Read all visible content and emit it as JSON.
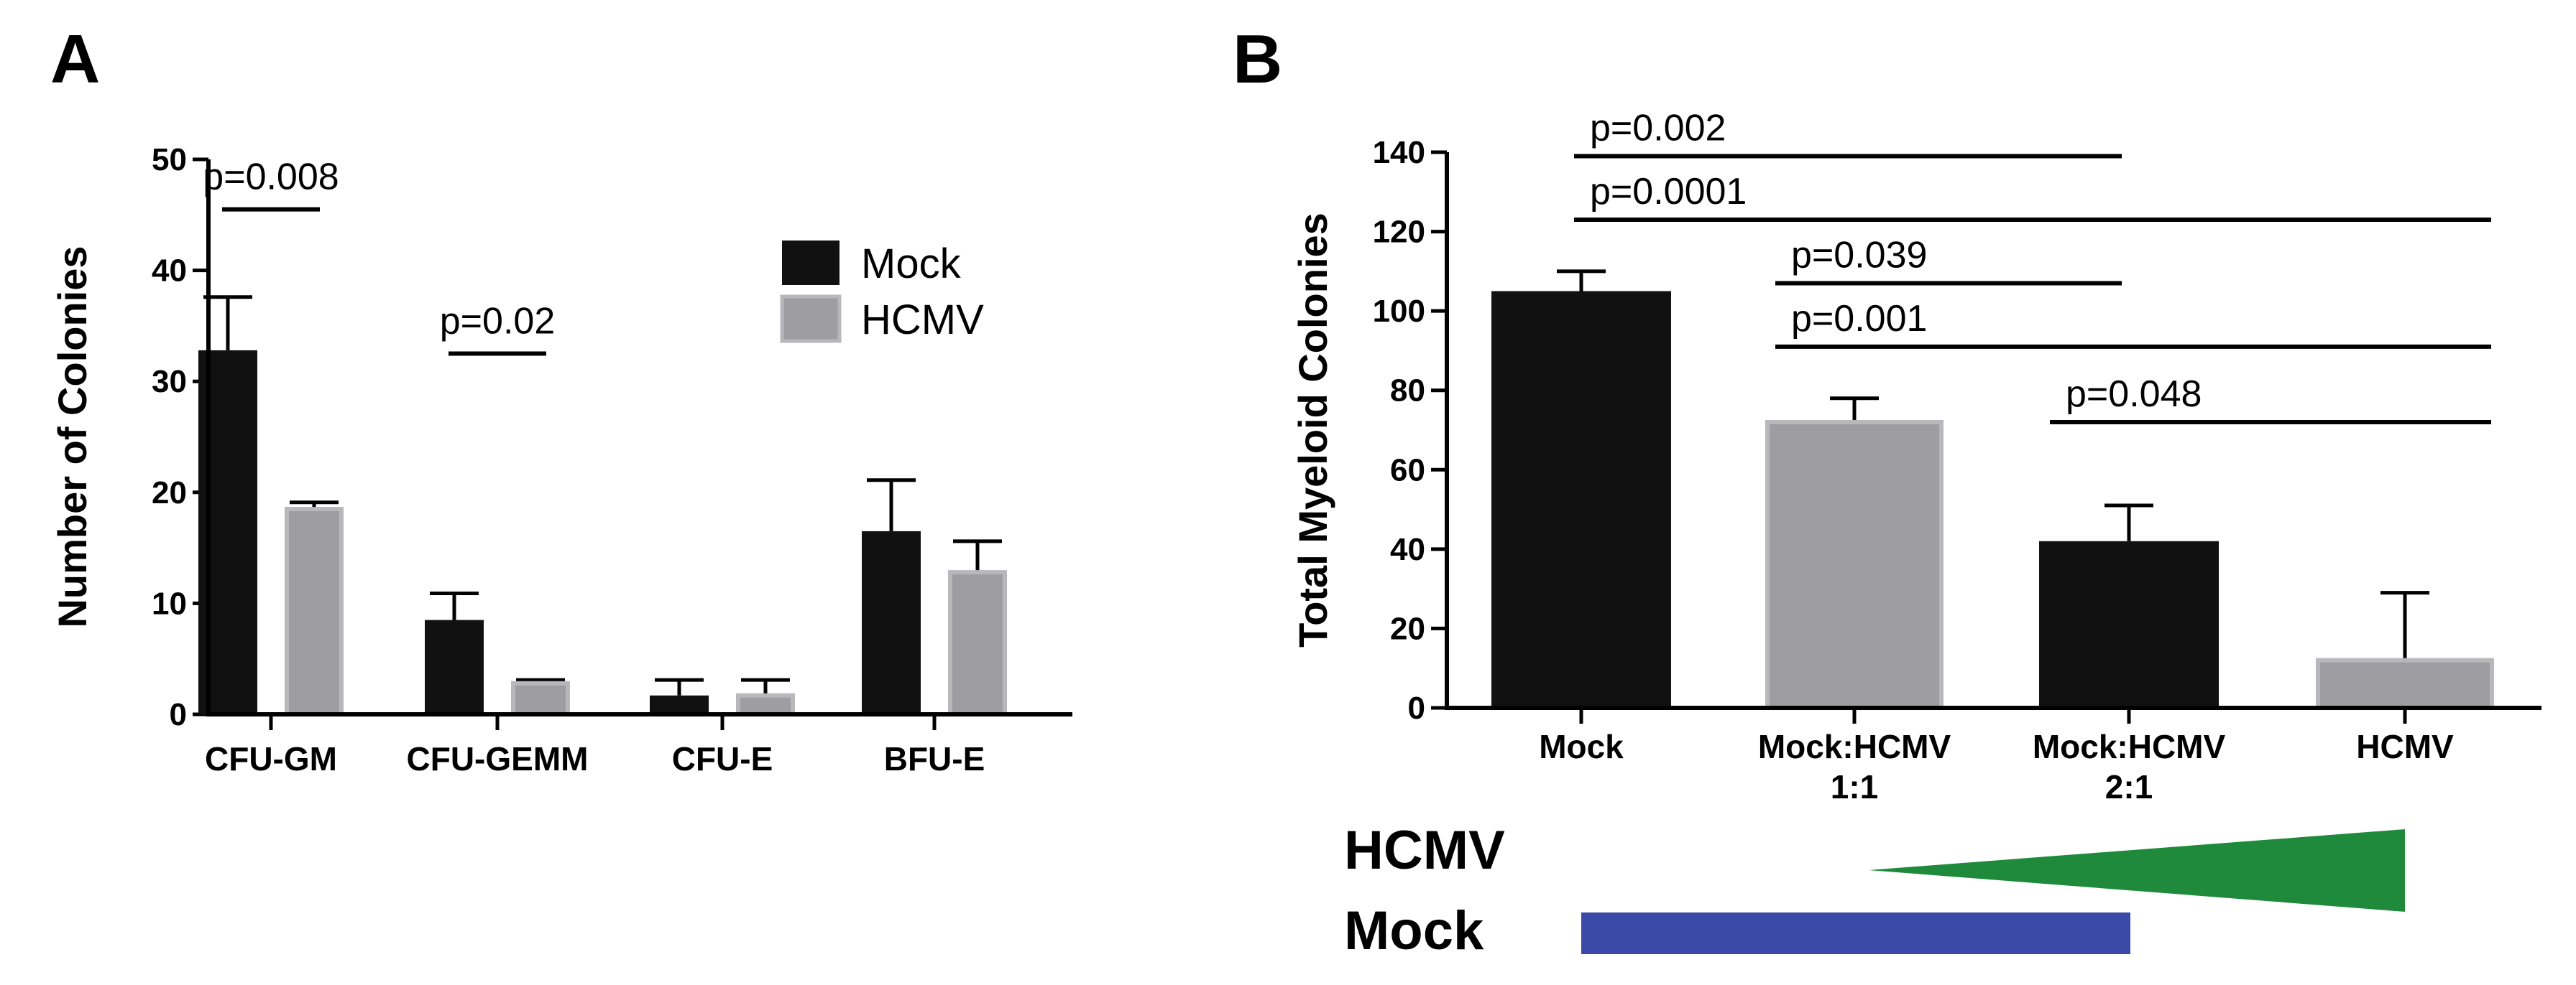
{
  "colors": {
    "mock": "#111111",
    "hcmv": "#9d9da2",
    "hcmv_edge": "#b8b8bc",
    "hcmv_wedge": "#1f8a3b",
    "mock_bar": "#3b4aa6"
  },
  "chart_data": [
    {
      "panel": "A",
      "type": "bar",
      "ylabel": "Number of Colonies",
      "ylim": [
        0,
        50
      ],
      "yticks": [
        0,
        10,
        20,
        30,
        40,
        50
      ],
      "categories": [
        "CFU-GM",
        "CFU-GEMM",
        "CFU-E",
        "BFU-E"
      ],
      "series": [
        {
          "name": "Mock",
          "color": "mock",
          "values": [
            32.8,
            8.5,
            1.7,
            16.5
          ],
          "errors": [
            4.8,
            2.4,
            1.4,
            4.6
          ]
        },
        {
          "name": "HCMV",
          "color": "hcmv",
          "values": [
            18.5,
            2.8,
            1.7,
            12.8
          ],
          "errors": [
            0.6,
            0.3,
            1.4,
            2.8
          ]
        }
      ],
      "legend": {
        "position": "top-right",
        "entries": [
          "Mock",
          "HCMV"
        ]
      },
      "annotations": [
        {
          "text": "p=0.008",
          "category": 0,
          "y": 45.5
        },
        {
          "text": "p=0.02",
          "category": 1,
          "y": 32.5
        }
      ]
    },
    {
      "panel": "B",
      "type": "bar",
      "ylabel": "Total Myeloid Colonies",
      "ylim": [
        0,
        140
      ],
      "yticks": [
        0,
        20,
        40,
        60,
        80,
        100,
        120,
        140
      ],
      "categories": [
        [
          "Mock"
        ],
        [
          "Mock:HCMV",
          "1:1"
        ],
        [
          "Mock:HCMV",
          "2:1"
        ],
        [
          "HCMV"
        ]
      ],
      "values": [
        105,
        72,
        42,
        12
      ],
      "errors": [
        5,
        6,
        9,
        17
      ],
      "bar_colors": [
        "mock",
        "hcmv",
        "mock",
        "hcmv"
      ],
      "comparisons": [
        {
          "text": "p=0.002",
          "from": 0,
          "to": 2,
          "y": 139
        },
        {
          "text": "p=0.0001",
          "from": 0,
          "to": 3,
          "y": 123
        },
        {
          "text": "p=0.039",
          "from": 1,
          "to": 2,
          "y": 107
        },
        {
          "text": "p=0.001",
          "from": 1,
          "to": 3,
          "y": 91
        },
        {
          "text": "p=0.048",
          "from": 2,
          "to": 3,
          "y": 72
        }
      ],
      "gradient_labels": {
        "hcmv": "HCMV",
        "mock": "Mock"
      }
    }
  ]
}
